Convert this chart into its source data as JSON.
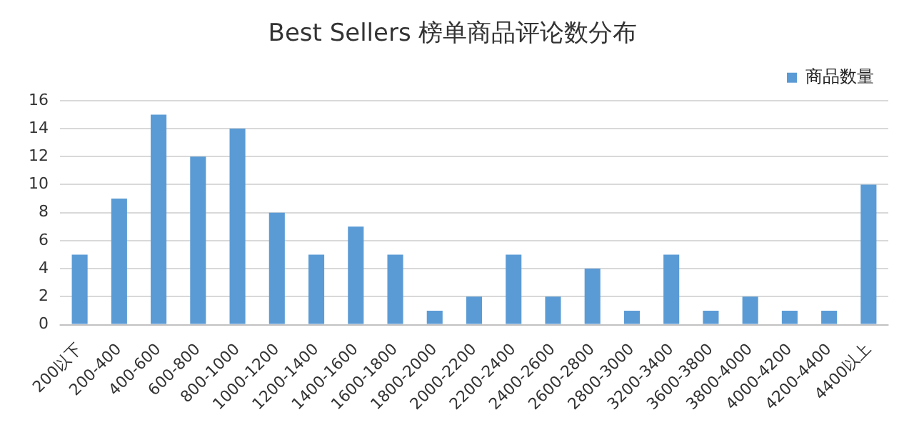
{
  "chart_data": {
    "type": "bar",
    "title": "Best Sellers 榜单商品评论数分布",
    "categories": [
      "200以下",
      "200-400",
      "400-600",
      "600-800",
      "800-1000",
      "1000-1200",
      "1200-1400",
      "1400-1600",
      "1600-1800",
      "1800-2000",
      "2000-2200",
      "2200-2400",
      "2400-2600",
      "2600-2800",
      "2800-3000",
      "3200-3400",
      "3600-3800",
      "3800-4000",
      "4000-4200",
      "4200-4400",
      "4400以上"
    ],
    "series": [
      {
        "name": "商品数量",
        "color": "#5b9bd5",
        "values": [
          5,
          9,
          15,
          12,
          14,
          8,
          5,
          7,
          5,
          1,
          2,
          5,
          2,
          4,
          1,
          5,
          1,
          2,
          1,
          1,
          10
        ]
      }
    ],
    "ylim": [
      0,
      16
    ],
    "yticks": [
      0,
      2,
      4,
      6,
      8,
      10,
      12,
      14,
      16
    ],
    "grid": "y",
    "legend": "top right"
  }
}
